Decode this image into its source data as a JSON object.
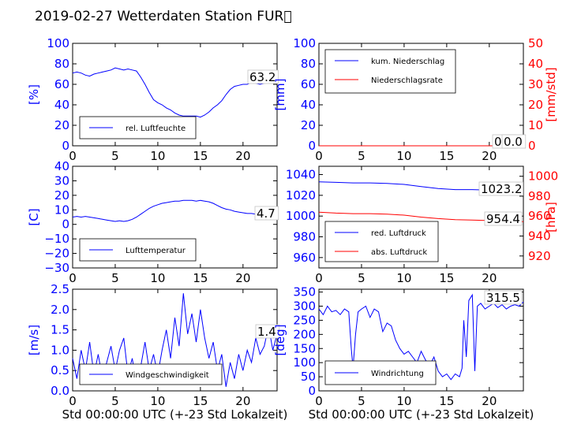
{
  "title": "2019-02-27 Wetterdaten Station FUR\u0000",
  "colors": {
    "primary": "#0000ff",
    "secondary": "#ff0000",
    "text": "#000000"
  },
  "chart_data": [
    {
      "type": "line",
      "panel": "humidity",
      "ylabel": "[%]",
      "xlabel": "",
      "xlim": [
        0,
        24
      ],
      "ylim": [
        0,
        100
      ],
      "xticks": [
        "0",
        "5",
        "10",
        "15",
        "20"
      ],
      "yticks": [
        "0",
        "20",
        "40",
        "60",
        "80",
        "100"
      ],
      "legend": {
        "placement": "lower-left",
        "entries": [
          "rel. Luftfeuchte"
        ]
      },
      "annotation": "63.2",
      "series": [
        {
          "name": "rel. Luftfeuchte",
          "color": "#0000ff",
          "x": [
            0,
            0.5,
            1,
            1.5,
            2,
            2.5,
            3,
            3.5,
            4,
            4.5,
            5,
            5.5,
            6,
            6.5,
            7,
            7.5,
            8,
            8.5,
            9,
            9.5,
            10,
            10.5,
            11,
            11.5,
            12,
            12.5,
            13,
            13.5,
            14,
            14.5,
            15,
            15.5,
            16,
            16.5,
            17,
            17.5,
            18,
            18.5,
            19,
            19.5,
            20,
            20.5,
            21,
            21.5,
            22,
            22.5,
            23,
            23.5,
            24
          ],
          "y": [
            71,
            72,
            71,
            69,
            68,
            70,
            71,
            72,
            73,
            74,
            76,
            75,
            74,
            75,
            74,
            73,
            67,
            60,
            52,
            45,
            42,
            40,
            37,
            35,
            32,
            30,
            29,
            29,
            29,
            29,
            28,
            30,
            33,
            37,
            40,
            44,
            50,
            55,
            58,
            59,
            60,
            60,
            62,
            61,
            60,
            61,
            63,
            62,
            63
          ]
        }
      ]
    },
    {
      "type": "line",
      "panel": "precipitation",
      "ylabel": "[mm]",
      "y2label": "[mm/std]",
      "xlabel": "",
      "xlim": [
        0,
        24
      ],
      "ylim": [
        0,
        100
      ],
      "y2lim": [
        0,
        50
      ],
      "xticks": [
        "0",
        "5",
        "10",
        "15",
        "20"
      ],
      "yticks": [
        "0",
        "20",
        "40",
        "60",
        "80",
        "100"
      ],
      "y2ticks": [
        "0",
        "10",
        "20",
        "30",
        "40",
        "50"
      ],
      "legend": {
        "placement": "upper-left",
        "entries": [
          "kum. Niederschlag",
          "Niederschlagsrate"
        ]
      },
      "annotation": "0.0",
      "annotation2": "0.0",
      "series": [
        {
          "name": "kum. Niederschlag",
          "color": "#0000ff",
          "axis": "left",
          "x": [
            0,
            24
          ],
          "y": [
            0,
            0
          ]
        },
        {
          "name": "Niederschlagsrate",
          "color": "#ff0000",
          "axis": "right",
          "x": [
            0,
            24
          ],
          "y": [
            0,
            0
          ]
        }
      ]
    },
    {
      "type": "line",
      "panel": "temperature",
      "ylabel": "[C]",
      "xlabel": "",
      "xlim": [
        0,
        24
      ],
      "ylim": [
        -30,
        40
      ],
      "xticks": [
        "0",
        "5",
        "10",
        "15",
        "20"
      ],
      "yticks": [
        "−30",
        "−20",
        "−10",
        "0",
        "10",
        "20",
        "30",
        "40"
      ],
      "legend": {
        "placement": "lower-left",
        "entries": [
          "Lufttemperatur"
        ]
      },
      "annotation": "4.7",
      "series": [
        {
          "name": "Lufttemperatur",
          "color": "#0000ff",
          "x": [
            0,
            0.5,
            1,
            1.5,
            2,
            2.5,
            3,
            3.5,
            4,
            4.5,
            5,
            5.5,
            6,
            6.5,
            7,
            7.5,
            8,
            8.5,
            9,
            9.5,
            10,
            10.5,
            11,
            11.5,
            12,
            12.5,
            13,
            13.5,
            14,
            14.5,
            15,
            15.5,
            16,
            16.5,
            17,
            17.5,
            18,
            18.5,
            19,
            19.5,
            20,
            20.5,
            21,
            21.5,
            22,
            22.5,
            23,
            23.5,
            24
          ],
          "y": [
            5,
            5.5,
            5,
            5.5,
            5,
            4.5,
            4,
            3.5,
            3,
            2.5,
            2,
            2.5,
            2,
            2.5,
            3.5,
            5,
            7,
            9,
            11,
            12.5,
            13.5,
            14.5,
            15,
            15.5,
            16,
            16,
            16.5,
            16.5,
            16.5,
            16,
            16.5,
            16,
            15.5,
            14.5,
            13,
            11.5,
            10.5,
            10,
            9,
            8.5,
            8,
            7.5,
            7.5,
            7,
            6.5,
            5.5,
            5,
            4.8,
            4.7
          ]
        }
      ]
    },
    {
      "type": "line",
      "panel": "pressure",
      "ylabel": "",
      "y2label": "[hPa]",
      "xlabel": "",
      "xlim": [
        0,
        24
      ],
      "ylim": [
        950,
        1048
      ],
      "y2lim": [
        908,
        1010
      ],
      "xticks": [
        "0",
        "5",
        "10",
        "15",
        "20"
      ],
      "yticks": [
        "960",
        "980",
        "1000",
        "1020",
        "1040"
      ],
      "y2ticks": [
        "920",
        "940",
        "960",
        "980",
        "1000"
      ],
      "legend": {
        "placement": "lower-left",
        "entries": [
          "red. Luftdruck",
          "abs. Luftdruck"
        ]
      },
      "annotation": "1023.2",
      "annotation2": "954.4",
      "series": [
        {
          "name": "red. Luftdruck",
          "color": "#0000ff",
          "axis": "left",
          "x": [
            0,
            2,
            4,
            6,
            8,
            10,
            12,
            14,
            16,
            18,
            20,
            22,
            24
          ],
          "y": [
            1033,
            1032.5,
            1032,
            1032,
            1031.5,
            1030.5,
            1028.5,
            1026.5,
            1025.5,
            1025.5,
            1025,
            1024,
            1023.2
          ]
        },
        {
          "name": "abs. Luftdruck",
          "color": "#ff0000",
          "axis": "right",
          "x": [
            0,
            2,
            4,
            6,
            8,
            10,
            12,
            14,
            16,
            18,
            20,
            22,
            24
          ],
          "y": [
            964,
            963,
            962.5,
            962.5,
            962,
            961,
            959,
            957.5,
            956.5,
            956,
            955.5,
            955,
            954.4
          ]
        }
      ]
    },
    {
      "type": "line",
      "panel": "wind-speed",
      "ylabel": "[m/s]",
      "xlabel": "Std 00:00:00 UTC (+-23 Std Lokalzeit)",
      "xlim": [
        0,
        24
      ],
      "ylim": [
        0,
        2.5
      ],
      "xticks": [
        "0",
        "5",
        "10",
        "15",
        "20"
      ],
      "yticks": [
        "0.0",
        "0.5",
        "1.0",
        "1.5",
        "2.0",
        "2.5"
      ],
      "legend": {
        "placement": "lower-left",
        "entries": [
          "Windgeschwindigkeit"
        ]
      },
      "annotation": "1.4",
      "series": [
        {
          "name": "Windgeschwindigkeit",
          "color": "#0000ff",
          "x": [
            0,
            0.5,
            1,
            1.5,
            2,
            2.5,
            3,
            3.5,
            4,
            4.5,
            5,
            5.5,
            6,
            6.5,
            7,
            7.5,
            8,
            8.5,
            9,
            9.5,
            10,
            10.5,
            11,
            11.5,
            12,
            12.5,
            13,
            13.5,
            14,
            14.5,
            15,
            15.5,
            16,
            16.5,
            17,
            17.5,
            18,
            18.5,
            19,
            19.5,
            20,
            20.5,
            21,
            21.5,
            22,
            22.5,
            23,
            23.5,
            24
          ],
          "y": [
            0.8,
            0.3,
            1.0,
            0.5,
            1.2,
            0.4,
            0.9,
            0.3,
            0.7,
            1.1,
            0.5,
            1.0,
            1.3,
            0.4,
            0.8,
            0.2,
            0.6,
            1.2,
            0.5,
            0.9,
            0.4,
            1.0,
            1.5,
            0.8,
            1.8,
            1.1,
            2.4,
            1.4,
            1.9,
            1.2,
            2.0,
            1.3,
            0.8,
            1.2,
            0.5,
            0.9,
            0.1,
            0.7,
            0.3,
            0.9,
            0.5,
            1.0,
            0.7,
            1.3,
            0.9,
            1.1,
            1.6,
            1.0,
            1.4
          ]
        }
      ]
    },
    {
      "type": "line",
      "panel": "wind-direction",
      "ylabel": "[deg]",
      "xlabel": "Std 00:00:00 UTC (+-23 Std Lokalzeit)",
      "xlim": [
        0,
        24
      ],
      "ylim": [
        0,
        360
      ],
      "xticks": [
        "0",
        "5",
        "10",
        "15",
        "20"
      ],
      "yticks": [
        "0",
        "50",
        "100",
        "150",
        "200",
        "250",
        "300",
        "350"
      ],
      "legend": {
        "placement": "lower-left",
        "entries": [
          "Windrichtung"
        ]
      },
      "annotation": "315.5",
      "series": [
        {
          "name": "Windrichtung",
          "color": "#0000ff",
          "x": [
            0,
            0.5,
            1,
            1.5,
            2,
            2.5,
            3,
            3.5,
            3.8,
            4,
            4.3,
            4.6,
            5,
            5.5,
            6,
            6.5,
            7,
            7.5,
            8,
            8.5,
            9,
            9.5,
            10,
            10.5,
            11,
            11.5,
            12,
            12.5,
            13,
            13.5,
            14,
            14.5,
            15,
            15.5,
            16,
            16.5,
            16.8,
            17,
            17.3,
            17.6,
            18,
            18.3,
            18.6,
            19,
            19.5,
            20,
            20.5,
            21,
            21.5,
            22,
            22.5,
            23,
            23.5,
            24
          ],
          "y": [
            290,
            270,
            300,
            280,
            285,
            270,
            290,
            280,
            150,
            80,
            200,
            280,
            290,
            300,
            260,
            290,
            280,
            210,
            240,
            230,
            180,
            150,
            130,
            140,
            120,
            100,
            140,
            110,
            90,
            120,
            70,
            50,
            60,
            40,
            60,
            50,
            80,
            250,
            120,
            320,
            340,
            70,
            300,
            310,
            290,
            300,
            310,
            295,
            305,
            290,
            300,
            305,
            300,
            315
          ]
        }
      ]
    }
  ]
}
